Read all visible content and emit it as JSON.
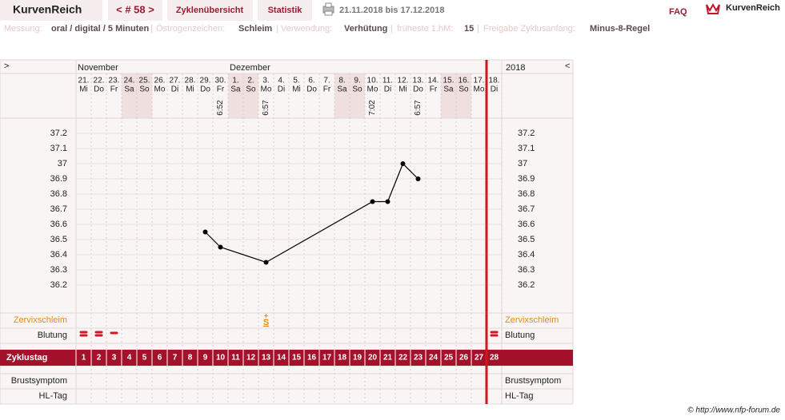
{
  "nav": {
    "brand": "KurvenReich",
    "cycle": "< # 58 >",
    "overview": "Zyklenübersicht",
    "stats": "Statistik",
    "range": "21.11.2018 bis 17.12.2018",
    "faq": "FAQ",
    "logo": "KurvenReich"
  },
  "info": {
    "separator": "|",
    "items": [
      {
        "label": "Messung:",
        "value": "oral / digital / 5 Minuten"
      },
      {
        "label": "Östrogenzeichen:",
        "value": "Schleim"
      },
      {
        "label": "Verwendung:",
        "value": "Verhütung"
      },
      {
        "label": "früheste 1.hM:",
        "value": "15"
      },
      {
        "label": "Freigabe Zyklusanfang:",
        "value": "Minus-8-Regel"
      }
    ]
  },
  "calendar": {
    "left_arrow": ">",
    "right_arrow": "<",
    "months": [
      "November",
      "Dezember"
    ],
    "year": "2018",
    "dates": [
      "21.",
      "22.",
      "23.",
      "24.",
      "25.",
      "26.",
      "27.",
      "28.",
      "29.",
      "30.",
      "1.",
      "2.",
      "3.",
      "4.",
      "5.",
      "6.",
      "7.",
      "8.",
      "9.",
      "10.",
      "11.",
      "12.",
      "13.",
      "14.",
      "15.",
      "16.",
      "17.",
      "18."
    ],
    "weekdays": [
      "Mi",
      "Do",
      "Fr",
      "Sa",
      "So",
      "Mo",
      "Di",
      "Mi",
      "Do",
      "Fr",
      "Sa",
      "So",
      "Mo",
      "Di",
      "Mi",
      "Do",
      "Fr",
      "Sa",
      "So",
      "Mo",
      "Di",
      "Mi",
      "Do",
      "Fr",
      "Sa",
      "So",
      "Mo",
      "Di"
    ],
    "shaded_days": [
      4,
      5,
      11,
      12,
      18,
      19,
      25,
      26
    ],
    "today_marker_day": 28,
    "measure_times": [
      {
        "day": 10,
        "time": "6:52"
      },
      {
        "day": 13,
        "time": "6:57"
      },
      {
        "day": 20,
        "time": "7:02"
      },
      {
        "day": 23,
        "time": "6:57"
      }
    ]
  },
  "chart_data": {
    "type": "line",
    "x": [
      9,
      10,
      13,
      20,
      21,
      22,
      23
    ],
    "values": [
      36.55,
      36.45,
      36.35,
      36.75,
      36.75,
      37,
      36.9
    ],
    "color": "#000000",
    "xlim": [
      0.5,
      28.5
    ],
    "ylim": [
      36.05,
      37.3
    ],
    "yticks": [
      36.2,
      36.3,
      36.4,
      36.5,
      36.6,
      36.7,
      36.8,
      36.9,
      37,
      37.1,
      37.2
    ],
    "grid": true
  },
  "cervical": {
    "label": "Zervixschleim",
    "entries": [
      {
        "day": 13,
        "symbol": "S",
        "modifier": "+"
      }
    ]
  },
  "bleeding": {
    "label": "Blutung",
    "entries": [
      {
        "day": 1,
        "level": 2
      },
      {
        "day": 2,
        "level": 2
      },
      {
        "day": 3,
        "level": 1
      },
      {
        "day": 28,
        "level": 2
      }
    ]
  },
  "cycle": {
    "label": "Zyklustag",
    "days": [
      1,
      2,
      3,
      4,
      5,
      6,
      7,
      8,
      9,
      10,
      11,
      12,
      13,
      14,
      15,
      16,
      17,
      18,
      19,
      20,
      21,
      22,
      23,
      24,
      25,
      26,
      27,
      28
    ]
  },
  "rows": {
    "breast": "Brustsymptom",
    "hl": "HL-Tag"
  },
  "footer": "© http://www.nfp-forum.de"
}
